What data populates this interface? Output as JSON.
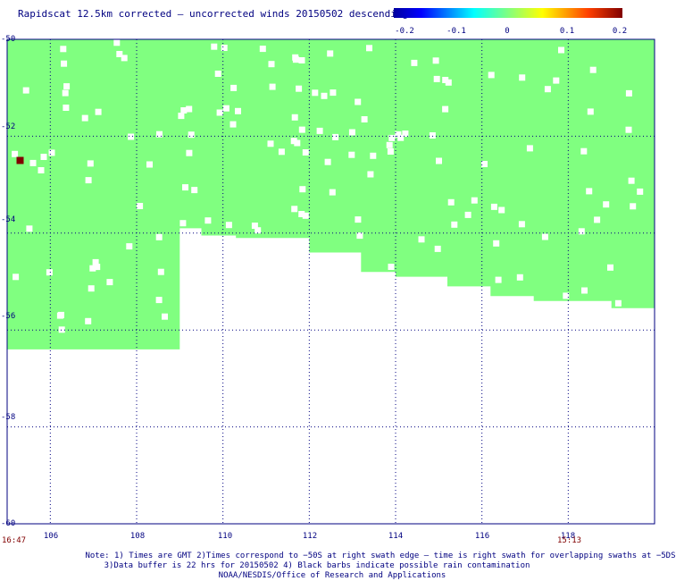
{
  "title": "Rapidscat 12.5km corrected – uncorrected winds 20150502 descending",
  "colorbar": {
    "labels": [
      "-0.2",
      "-0.1",
      "0",
      "0.1",
      "0.2"
    ],
    "min": -0.2,
    "max": 0.2
  },
  "chart_data": {
    "type": "heatmap",
    "title": "Rapidscat 12.5km corrected – uncorrected winds 20150502 descending",
    "xlim": [
      105,
      120
    ],
    "ylim": [
      -60,
      -50
    ],
    "x_ticks": [
      "106",
      "108",
      "110",
      "112",
      "114",
      "116",
      "118"
    ],
    "y_ticks": [
      "-50",
      "-52",
      "-54",
      "-56",
      "-58",
      "-60"
    ],
    "fill_value": 0,
    "fill_color": "#80ff80",
    "swath_bottom_edge": [
      [
        105,
        -56.4
      ],
      [
        108,
        -56.4
      ],
      [
        108.0,
        -56.4
      ],
      [
        109.0,
        -56.4
      ],
      [
        109.0,
        -53.9
      ],
      [
        109.5,
        -53.9
      ],
      [
        109.5,
        -54.05
      ],
      [
        110.3,
        -54.05
      ],
      [
        110.3,
        -54.1
      ],
      [
        112.0,
        -54.1
      ],
      [
        112.0,
        -54.4
      ],
      [
        113.2,
        -54.4
      ],
      [
        113.2,
        -54.8
      ],
      [
        114.0,
        -54.8
      ],
      [
        114.0,
        -54.9
      ],
      [
        115.2,
        -54.9
      ],
      [
        115.2,
        -55.1
      ],
      [
        116.2,
        -55.1
      ],
      [
        116.2,
        -55.3
      ],
      [
        117.2,
        -55.3
      ],
      [
        117.2,
        -55.4
      ],
      [
        119.0,
        -55.4
      ],
      [
        119.0,
        -55.55
      ],
      [
        120,
        -55.55
      ]
    ],
    "swath_top": -50,
    "anomaly_points": [
      {
        "x": 105.3,
        "y": -52.5,
        "value": 0.2
      }
    ],
    "time_left": "16:47",
    "time_right": "15:13"
  },
  "notes": {
    "line1": "Note: 1) Times are GMT 2)Times correspond to −50S at right swath edge – time is right swath for overlapping swaths at −5DS",
    "line2": "3)Data buffer is 22 hrs for 20150502 4) Black barbs indicate possible rain contamination",
    "line3": "NOAA/NESDIS/Office of Research and Applications"
  }
}
